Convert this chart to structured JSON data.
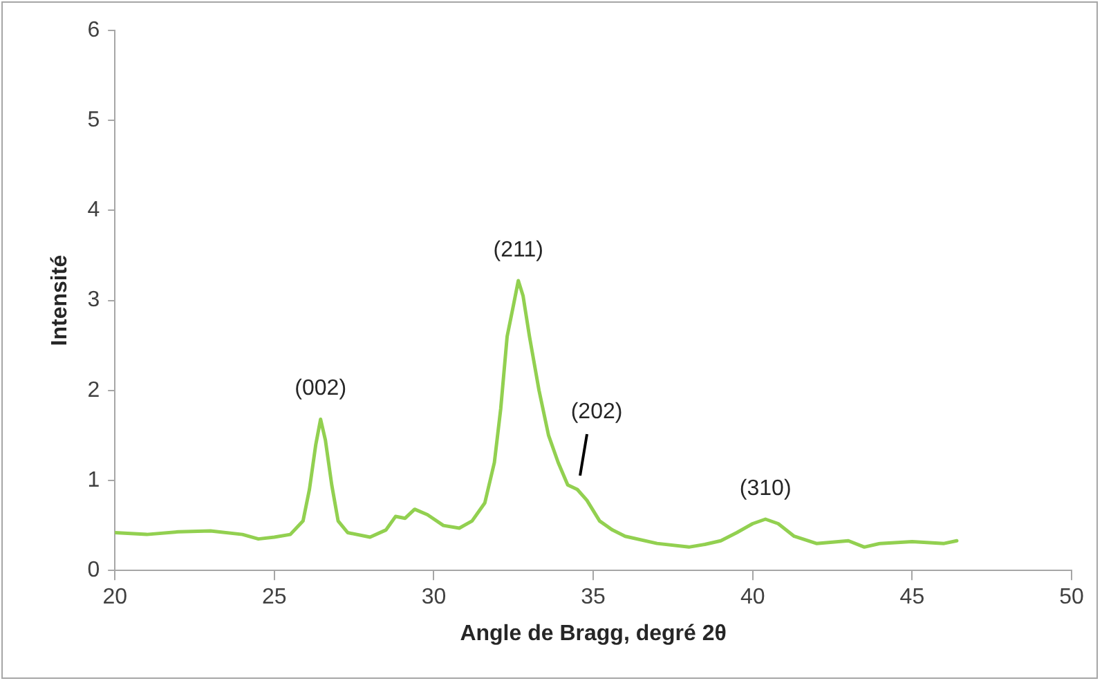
{
  "chart_data": {
    "type": "line",
    "xlabel": "Angle de Bragg, degré 2θ",
    "ylabel": "Intensité",
    "xlim": [
      20,
      50
    ],
    "xticks": [
      20,
      25,
      30,
      35,
      40,
      45,
      50
    ],
    "ylim": [
      0,
      6
    ],
    "yticks": [
      0,
      1,
      2,
      3,
      4,
      5,
      6
    ],
    "grid": false,
    "legend": false,
    "marker": "none",
    "series": [
      {
        "color": "#92d050",
        "x": [
          20,
          21,
          22,
          23,
          24,
          24.5,
          25,
          25.5,
          25.9,
          26.1,
          26.3,
          26.45,
          26.6,
          26.8,
          27,
          27.3,
          28,
          28.5,
          28.8,
          29.1,
          29.4,
          29.8,
          30.3,
          30.8,
          31.2,
          31.6,
          31.9,
          32.1,
          32.3,
          32.5,
          32.65,
          32.8,
          33,
          33.3,
          33.6,
          33.9,
          34.2,
          34.5,
          34.8,
          35.2,
          35.6,
          36,
          37,
          38,
          38.5,
          39,
          39.5,
          40,
          40.4,
          40.8,
          41.3,
          42,
          43,
          43.5,
          44,
          45,
          46,
          46.4
        ],
        "values": [
          0.42,
          0.4,
          0.43,
          0.44,
          0.4,
          0.35,
          0.37,
          0.4,
          0.55,
          0.9,
          1.4,
          1.68,
          1.45,
          0.95,
          0.55,
          0.42,
          0.37,
          0.45,
          0.6,
          0.58,
          0.68,
          0.62,
          0.5,
          0.47,
          0.55,
          0.75,
          1.2,
          1.8,
          2.6,
          2.95,
          3.22,
          3.05,
          2.6,
          2,
          1.5,
          1.2,
          0.95,
          0.9,
          0.78,
          0.55,
          0.45,
          0.38,
          0.3,
          0.26,
          0.29,
          0.33,
          0.42,
          0.52,
          0.57,
          0.52,
          0.38,
          0.3,
          0.33,
          0.26,
          0.3,
          0.32,
          0.3,
          0.33
        ]
      }
    ],
    "annotations": [
      {
        "text": "(002)",
        "x": 26.45,
        "y": 1.68
      },
      {
        "text": "(211)",
        "x": 32.65,
        "y": 3.22
      },
      {
        "text": "(202)",
        "x": 34.5,
        "y": 0.9
      },
      {
        "text": "(310)",
        "x": 40.4,
        "y": 0.57
      }
    ]
  }
}
